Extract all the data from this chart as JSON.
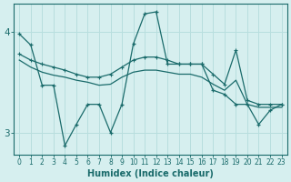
{
  "xlabel": "Humidex (Indice chaleur)",
  "background_color": "#d6efef",
  "line_color": "#1a6b6b",
  "grid_color": "#b8dede",
  "xlim": [
    -0.5,
    23.5
  ],
  "ylim": [
    2.78,
    4.28
  ],
  "yticks": [
    3,
    4
  ],
  "xticks": [
    0,
    1,
    2,
    3,
    4,
    5,
    6,
    7,
    8,
    9,
    10,
    11,
    12,
    13,
    14,
    15,
    16,
    17,
    18,
    19,
    20,
    21,
    22,
    23
  ],
  "line1_x": [
    0,
    1,
    2,
    3,
    4,
    5,
    6,
    7,
    8,
    9,
    10,
    11,
    12,
    13,
    14,
    15,
    16,
    17,
    18,
    19,
    20,
    21,
    22,
    23
  ],
  "line1_y": [
    3.98,
    3.87,
    3.47,
    3.47,
    2.87,
    3.08,
    3.28,
    3.28,
    3.0,
    3.28,
    3.88,
    4.18,
    4.2,
    3.68,
    3.68,
    3.68,
    3.68,
    3.42,
    3.38,
    3.28,
    3.28,
    3.08,
    3.22,
    3.28
  ],
  "line2_x": [
    0,
    1,
    2,
    3,
    4,
    5,
    6,
    7,
    8,
    9,
    10,
    11,
    12,
    13,
    14,
    15,
    16,
    17,
    18,
    19,
    20,
    21,
    22,
    23
  ],
  "line2_y": [
    3.78,
    3.72,
    3.68,
    3.65,
    3.62,
    3.58,
    3.55,
    3.55,
    3.58,
    3.65,
    3.72,
    3.75,
    3.75,
    3.72,
    3.68,
    3.68,
    3.68,
    3.58,
    3.48,
    3.82,
    3.32,
    3.28,
    3.28,
    3.28
  ],
  "line3_x": [
    0,
    1,
    2,
    3,
    4,
    5,
    6,
    7,
    8,
    9,
    10,
    11,
    12,
    13,
    14,
    15,
    16,
    17,
    18,
    19,
    20,
    21,
    22,
    23
  ],
  "line3_y": [
    3.72,
    3.65,
    3.6,
    3.57,
    3.55,
    3.52,
    3.5,
    3.47,
    3.48,
    3.55,
    3.6,
    3.62,
    3.62,
    3.6,
    3.58,
    3.58,
    3.55,
    3.48,
    3.42,
    3.52,
    3.28,
    3.25,
    3.25,
    3.25
  ]
}
